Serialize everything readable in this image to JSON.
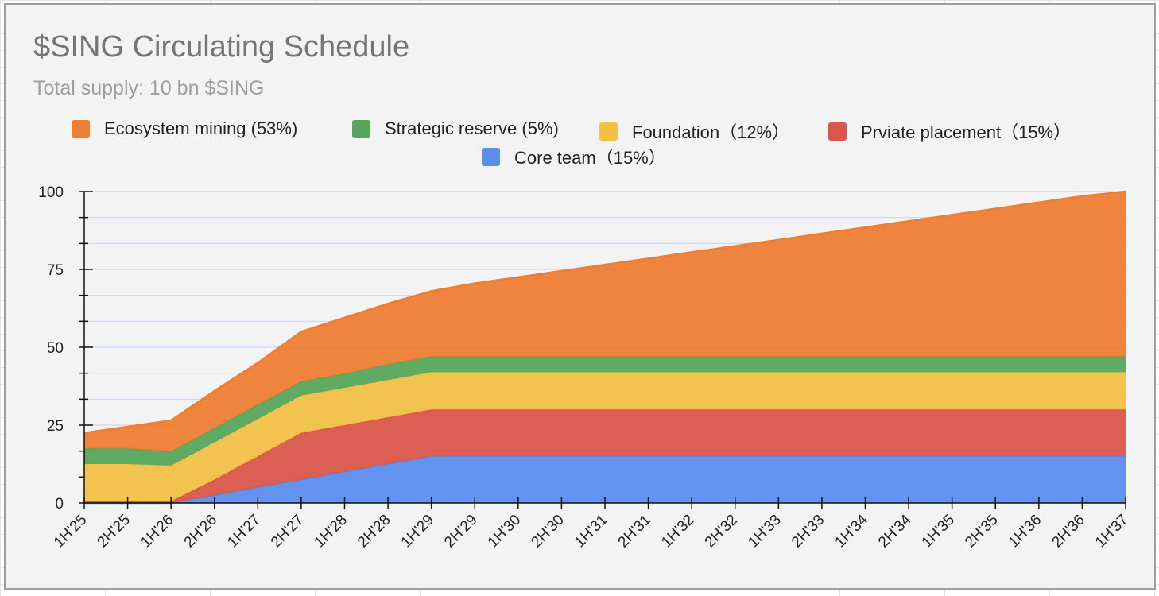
{
  "chart_data": {
    "type": "area",
    "stacked": true,
    "title": "$SING Circulating Schedule",
    "subtitle": "Total supply: 10 bn $SING",
    "xlabel": "",
    "ylabel": "",
    "ylim": [
      0,
      100
    ],
    "yticks": [
      0,
      25,
      50,
      75,
      100
    ],
    "grid": true,
    "legend_position": "top",
    "categories": [
      "1H'25",
      "2H'25",
      "1H'26",
      "2H'26",
      "1H'27",
      "2H'27",
      "1H'28",
      "2H'28",
      "1H'29",
      "2H'29",
      "1H'30",
      "2H'30",
      "1H'31",
      "2H'31",
      "1H'32",
      "2H'32",
      "1H'33",
      "2H'33",
      "1H'34",
      "2H'34",
      "1H'35",
      "2H'35",
      "1H'36",
      "2H'36",
      "1H'37"
    ],
    "series": [
      {
        "name": "Core team（15%）",
        "color": "#5b8ded",
        "values": [
          0,
          0,
          0,
          2.5,
          5,
          7.5,
          10,
          12.5,
          15,
          15,
          15,
          15,
          15,
          15,
          15,
          15,
          15,
          15,
          15,
          15,
          15,
          15,
          15,
          15,
          15
        ]
      },
      {
        "name": "Prviate placement（15%）",
        "color": "#d9574a",
        "values": [
          0.5,
          0.5,
          0.5,
          5,
          10,
          15,
          15,
          15,
          15,
          15,
          15,
          15,
          15,
          15,
          15,
          15,
          15,
          15,
          15,
          15,
          15,
          15,
          15,
          15,
          15
        ]
      },
      {
        "name": "Foundation（12%）",
        "color": "#f1c045",
        "values": [
          12,
          12,
          11.5,
          12,
          12,
          12,
          12,
          12,
          12,
          12,
          12,
          12,
          12,
          12,
          12,
          12,
          12,
          12,
          12,
          12,
          12,
          12,
          12,
          12,
          12
        ]
      },
      {
        "name": "Strategic reserve (5%)",
        "color": "#57a65b",
        "values": [
          5,
          5,
          4.5,
          4.5,
          4.5,
          4.5,
          4.5,
          5,
          5,
          5,
          5,
          5,
          5,
          5,
          5,
          5,
          5,
          5,
          5,
          5,
          5,
          5,
          5,
          5,
          5
        ]
      },
      {
        "name": "Ecosystem mining (53%)",
        "color": "#ed7d33",
        "values": [
          5,
          7,
          10,
          12,
          13.5,
          16,
          18,
          19.5,
          21,
          23.5,
          25.5,
          27.5,
          29.5,
          31.5,
          33.5,
          35.5,
          37.5,
          39.5,
          41.5,
          43.5,
          45.5,
          47.5,
          49.5,
          51.5,
          53
        ]
      }
    ],
    "legend_order": [
      4,
      3,
      2,
      1,
      0
    ]
  }
}
